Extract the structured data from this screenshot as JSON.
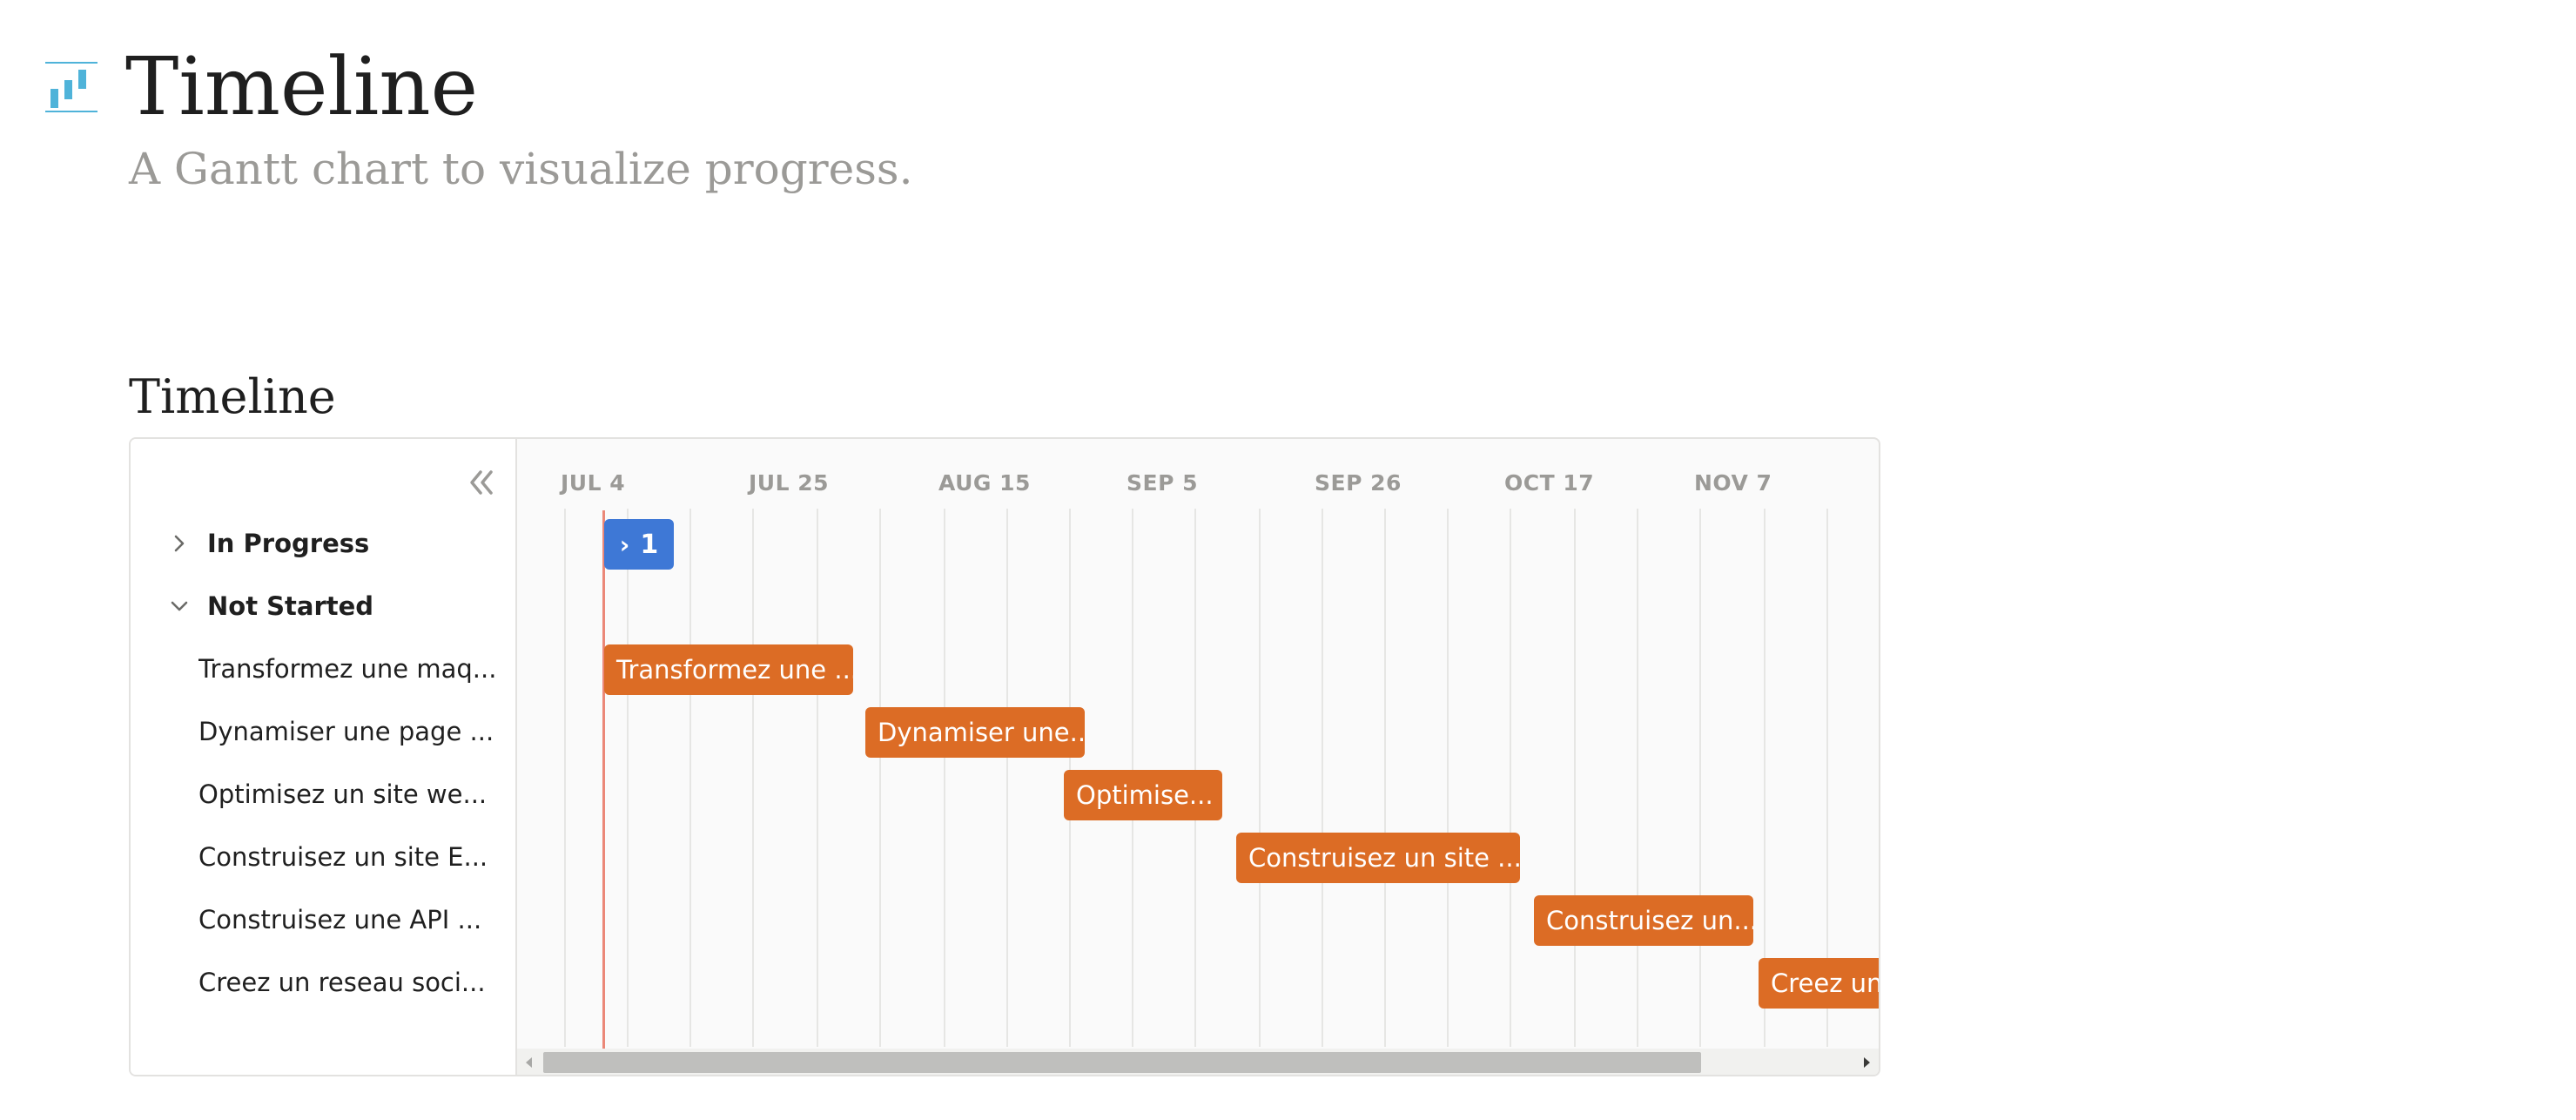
{
  "page": {
    "title": "Timeline",
    "subtitle": "A Gantt chart to visualize progress."
  },
  "section": {
    "title": "Timeline"
  },
  "colors": {
    "accent_orange": "#dc6c25",
    "accent_blue": "#3e78d6",
    "today_line": "#eb8878",
    "icon_teal": "#4fb3d9"
  },
  "timeline": {
    "dates": [
      "JUL 4",
      "JUL 25",
      "AUG 15",
      "SEP 5",
      "SEP 26",
      "OCT 17",
      "NOV 7"
    ],
    "groups": [
      {
        "label": "In Progress",
        "collapsed": true,
        "count": "1"
      },
      {
        "label": "Not Started",
        "collapsed": false
      }
    ],
    "tasks": [
      {
        "label": "Transformez une maq...",
        "bar_label": "Transformez une ..."
      },
      {
        "label": "Dynamiser une page ...",
        "bar_label": "Dynamiser une..."
      },
      {
        "label": "Optimisez un site we...",
        "bar_label": "Optimise..."
      },
      {
        "label": "Construisez un site E...",
        "bar_label": "Construisez un site ..."
      },
      {
        "label": "Construisez une API ...",
        "bar_label": "Construisez un..."
      },
      {
        "label": "Creez un reseau soci...",
        "bar_label": "Creez un"
      }
    ]
  },
  "icons": {
    "page_icon": "timeline-chart-icon",
    "collapse": "double-chevron-left-icon",
    "group_expand": "chevron-right-icon",
    "group_collapse": "chevron-down-icon"
  }
}
